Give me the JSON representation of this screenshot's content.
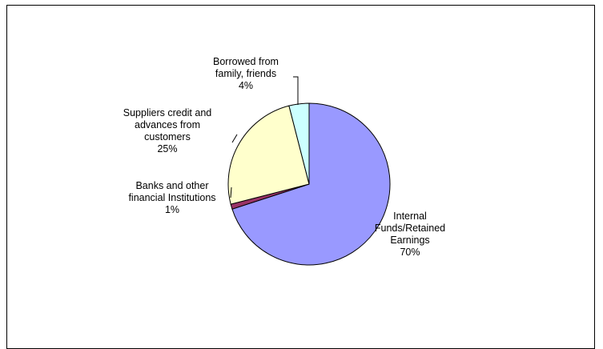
{
  "chart_data": {
    "type": "pie",
    "start_angle_deg": 0,
    "direction": "clockwise",
    "slices": [
      {
        "label_lines": [
          "Internal",
          "Funds/Retained",
          "Earnings"
        ],
        "pct_label": "70%",
        "value": 70,
        "color": "#9999FF"
      },
      {
        "label_lines": [
          "Banks and other",
          "financial Institutions"
        ],
        "pct_label": "1%",
        "value": 1,
        "color": "#993366"
      },
      {
        "label_lines": [
          "Suppliers credit and",
          "advances from",
          "customers"
        ],
        "pct_label": "25%",
        "value": 25,
        "color": "#FFFFCC"
      },
      {
        "label_lines": [
          "Borrowed from",
          "family, friends"
        ],
        "pct_label": "4%",
        "value": 4,
        "color": "#CCFFFF"
      }
    ]
  }
}
